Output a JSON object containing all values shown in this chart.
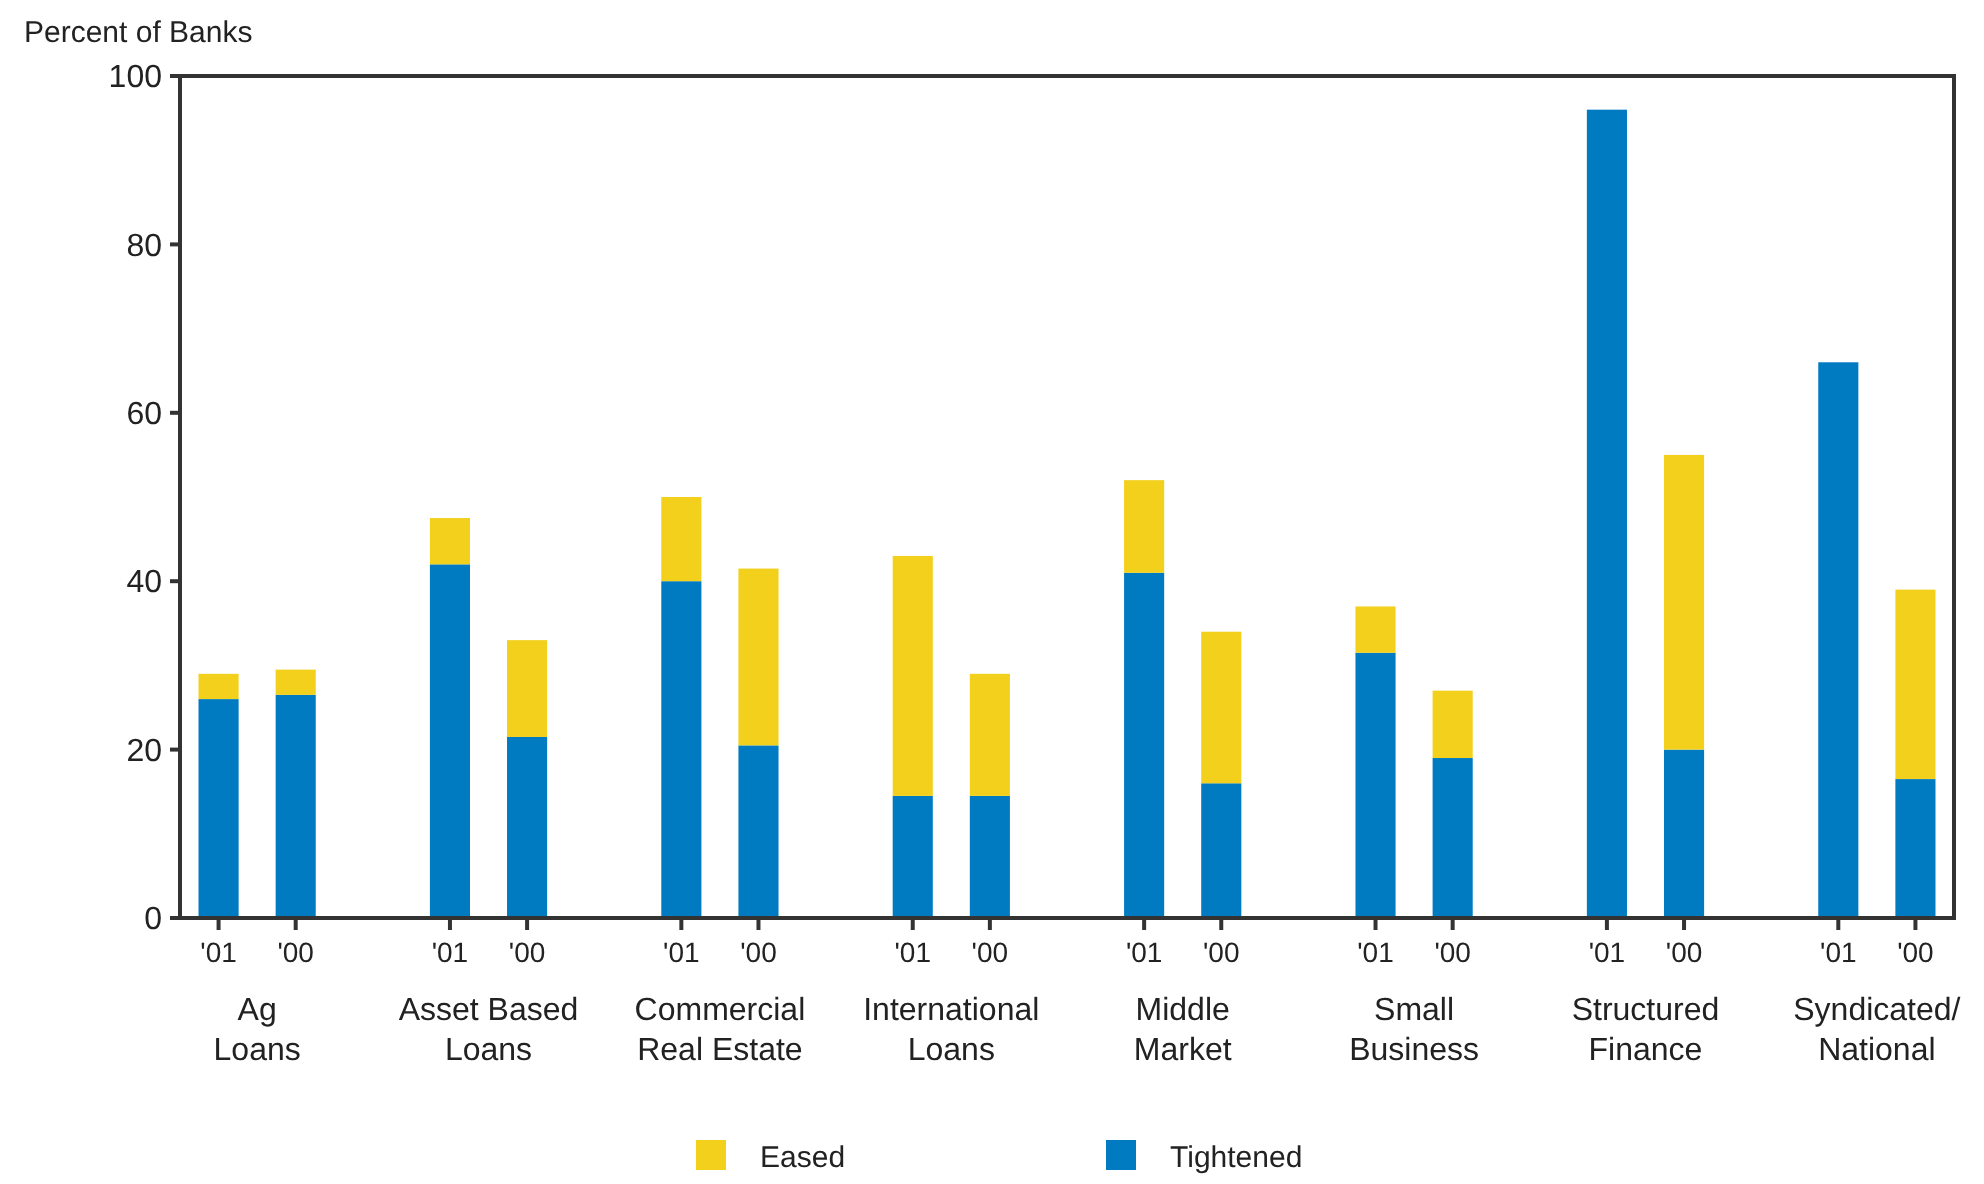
{
  "chart_data": {
    "type": "bar",
    "stacked": true,
    "ylabel": "Percent of Banks",
    "ylim": [
      0,
      100
    ],
    "yticks": [
      0,
      20,
      40,
      60,
      80,
      100
    ],
    "legend": "bottom",
    "grid": false,
    "categories": [
      "'01",
      "'00",
      null,
      "'01",
      "'00",
      null,
      "'01",
      "'00",
      null,
      "'01",
      "'00",
      null,
      "'01",
      "'00",
      null,
      "'01",
      "'00",
      null,
      "'01",
      "'00",
      null,
      "'01",
      "'00"
    ],
    "series": [
      {
        "name": "Tightened",
        "color": "#007bc2",
        "values": [
          26,
          26.5,
          null,
          42,
          21.5,
          null,
          40,
          20.5,
          null,
          14.5,
          14.5,
          null,
          41,
          16,
          null,
          31.5,
          19,
          null,
          96,
          20,
          null,
          66,
          16.5
        ]
      },
      {
        "name": "Eased",
        "color": "#f2d01c",
        "values": [
          3,
          3,
          null,
          5.5,
          11.5,
          null,
          10,
          21,
          null,
          28.5,
          14.5,
          null,
          11,
          18,
          null,
          5.5,
          8,
          null,
          0,
          35,
          null,
          0,
          22.5
        ]
      }
    ],
    "annotations": [
      "Ag\nLoans",
      "Asset Based\nLoans",
      "Commercial\nReal Estate",
      "International\nLoans",
      "Middle\nMarket",
      "Small\nBusiness",
      "Structured\nFinance",
      "Syndicated/\nNational"
    ]
  }
}
